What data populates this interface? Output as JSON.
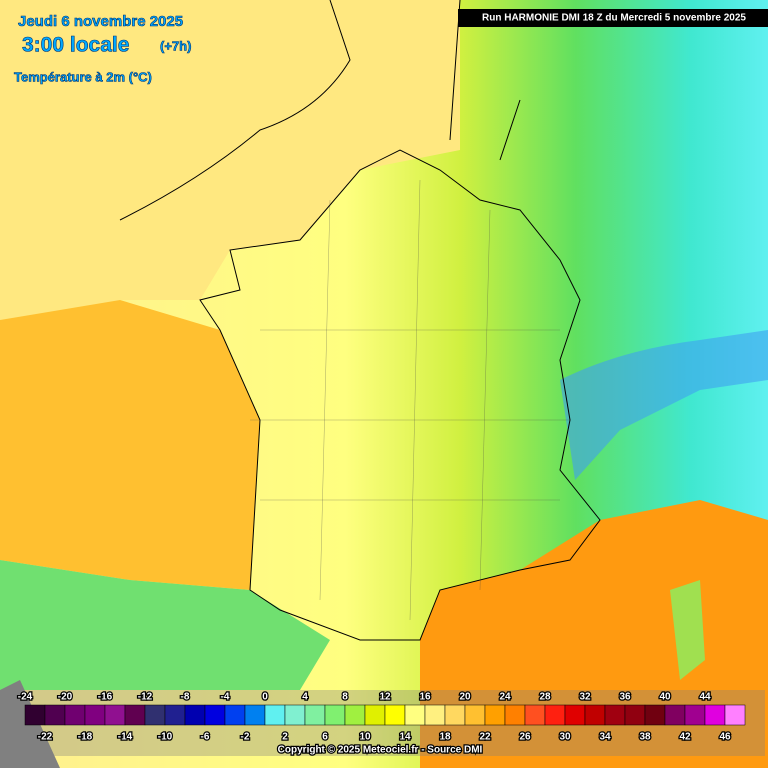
{
  "header": {
    "date": "Jeudi 6 novembre 2025",
    "time": "3:00 locale",
    "offset": "(+7h)",
    "variable": "Température à 2m (°C)",
    "run": "Run HARMONIE DMI 18 Z du Mercredi 5 novembre 2025"
  },
  "legend": {
    "top_labels": [
      -24,
      -20,
      -16,
      -12,
      -8,
      -4,
      0,
      4,
      8,
      12,
      16,
      20,
      24,
      28,
      32,
      36,
      40,
      44
    ],
    "bottom_labels": [
      -22,
      -18,
      -14,
      -10,
      -6,
      -2,
      2,
      6,
      10,
      14,
      18,
      22,
      26,
      30,
      34,
      38,
      42,
      46
    ],
    "colors": [
      "#300030",
      "#500050",
      "#700070",
      "#800080",
      "#901090",
      "#600050",
      "#303070",
      "#202090",
      "#0000b0",
      "#0000e0",
      "#0040f0",
      "#0080f0",
      "#60f0f0",
      "#80f0d0",
      "#80f0a0",
      "#80f070",
      "#a0f040",
      "#e0f000",
      "#ffff00",
      "#ffff80",
      "#fff080",
      "#ffd860",
      "#ffc030",
      "#ffa000",
      "#ff8000",
      "#ff5020",
      "#ff2010",
      "#e00000",
      "#c00000",
      "#a00010",
      "#900010",
      "#700010",
      "#800060",
      "#a00090",
      "#e000e0",
      "#ff80ff"
    ]
  },
  "footer": {
    "copyright": "Copyright © 2025 Meteociel.fr - Source DMI"
  }
}
